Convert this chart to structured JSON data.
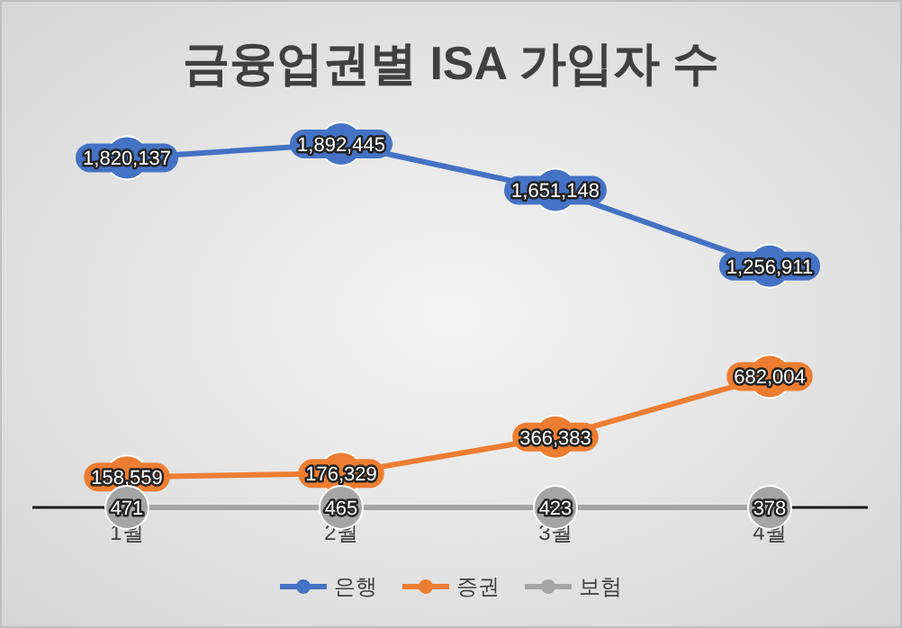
{
  "chart_data": {
    "type": "line",
    "title": "금융업권별 ISA 가입자 수",
    "categories": [
      "1월",
      "2월",
      "3월",
      "4월"
    ],
    "series": [
      {
        "name": "은행",
        "color": "#4472c4",
        "values": [
          1820137,
          1892445,
          1651148,
          1256911
        ],
        "value_labels": [
          "1,820,137",
          "1,892,445",
          "1,651,148",
          "1,256,911"
        ]
      },
      {
        "name": "증권",
        "color": "#ed7d31",
        "values": [
          158559,
          176329,
          366383,
          682004
        ],
        "value_labels": [
          "158,559",
          "176,329",
          "366,383",
          "682,004"
        ]
      },
      {
        "name": "보험",
        "color": "#a5a5a5",
        "values": [
          471,
          465,
          423,
          378
        ],
        "value_labels": [
          "471",
          "465",
          "423",
          "378"
        ]
      }
    ],
    "marker": "circle",
    "legend": "bottom",
    "line_style": "solid"
  }
}
